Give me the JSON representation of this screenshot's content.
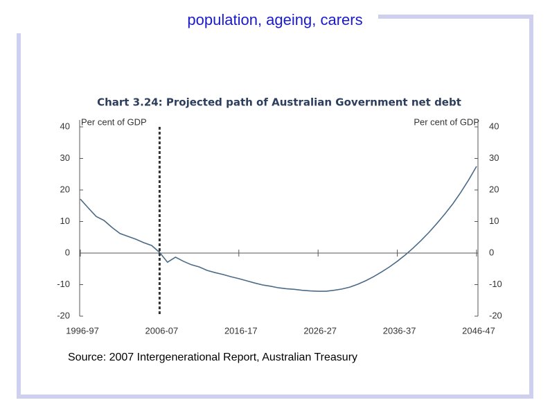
{
  "slide_title": "population, ageing, carers",
  "source": "Source: 2007 Intergenerational Report, Australian Treasury",
  "chart_data": {
    "type": "line",
    "title": "Chart 3.24: Projected path of Australian Government net debt",
    "y_label_left": "Per cent of GDP",
    "y_label_right": "Per cent of GDP",
    "x": [
      1996,
      1997,
      1998,
      1999,
      2000,
      2001,
      2002,
      2003,
      2004,
      2005,
      2006,
      2007,
      2008,
      2009,
      2010,
      2011,
      2012,
      2013,
      2014,
      2015,
      2016,
      2017,
      2018,
      2019,
      2020,
      2021,
      2022,
      2023,
      2024,
      2025,
      2026,
      2027,
      2028,
      2029,
      2030,
      2031,
      2032,
      2033,
      2034,
      2035,
      2036,
      2037,
      2038,
      2039,
      2040,
      2041,
      2042,
      2043,
      2044,
      2045,
      2046
    ],
    "series": [
      {
        "name": "Net debt",
        "color": "#4a6a88",
        "values": [
          17.1,
          14.3,
          11.6,
          10.3,
          8.1,
          6.2,
          5.3,
          4.4,
          3.3,
          2.4,
          0.2,
          -2.9,
          -1.3,
          -2.6,
          -3.7,
          -4.4,
          -5.5,
          -6.2,
          -6.8,
          -7.5,
          -8.1,
          -8.8,
          -9.5,
          -10.1,
          -10.5,
          -11,
          -11.3,
          -11.5,
          -11.8,
          -12,
          -12.1,
          -12.1,
          -11.8,
          -11.4,
          -10.8,
          -9.9,
          -8.8,
          -7.5,
          -6,
          -4.4,
          -2.6,
          -0.6,
          1.6,
          4,
          6.6,
          9.4,
          12.4,
          15.6,
          19.2,
          23.2,
          27.5
        ]
      }
    ],
    "marker_x": 2006,
    "xlim": [
      1996,
      2046
    ],
    "xticks": [
      {
        "value": 1996,
        "label": "1996-97"
      },
      {
        "value": 2006,
        "label": "2006-07"
      },
      {
        "value": 2016,
        "label": "2016-17"
      },
      {
        "value": 2026,
        "label": "2026-27"
      },
      {
        "value": 2036,
        "label": "2036-37"
      },
      {
        "value": 2046,
        "label": "2046-47"
      }
    ],
    "ylim": [
      -20,
      40
    ],
    "yticks": [
      -20,
      -10,
      0,
      10,
      20,
      30,
      40
    ]
  }
}
